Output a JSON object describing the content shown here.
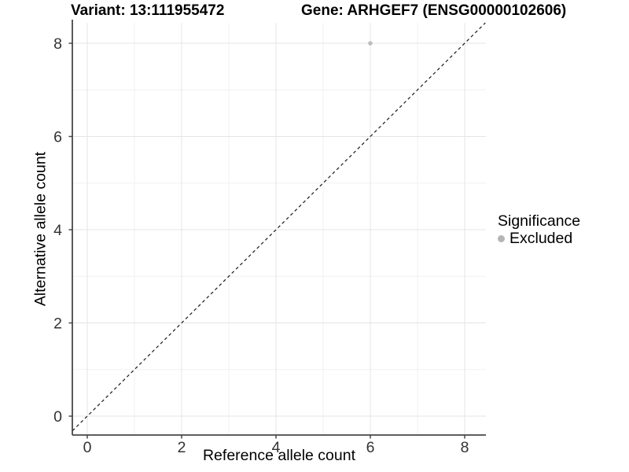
{
  "chart_data": {
    "type": "scatter",
    "title_left": "Variant: 13:111955472",
    "title_right": "Gene: ARHGEF7 (ENSG00000102606)",
    "xlabel": "Reference allele count",
    "ylabel": "Alternative allele count",
    "xlim": [
      -0.32,
      8.44
    ],
    "ylim": [
      -0.41,
      8.44
    ],
    "x_ticks": [
      0,
      2,
      4,
      6,
      8
    ],
    "y_ticks": [
      0,
      2,
      4,
      6,
      8
    ],
    "x_minor_ticks": [
      1,
      3,
      5,
      7
    ],
    "y_minor_ticks": [
      1,
      3,
      5,
      7
    ],
    "grid": true,
    "points": [
      {
        "x": 6,
        "y": 8,
        "significance": "Excluded"
      }
    ],
    "identity_line": {
      "slope": 1,
      "intercept": 0,
      "style": "dashed"
    },
    "legend": {
      "position": "right",
      "title": "Significance",
      "items": [
        {
          "label": "Excluded",
          "color": "#b9b9b9"
        }
      ]
    }
  },
  "colors": {
    "point": "#bdbdbd",
    "legend_dot": "#b5b5b5",
    "grid_major": "#e4e4e4",
    "grid_minor": "#f1f1f1",
    "axis": "#474747",
    "tick_label": "#333333",
    "dashed_line": "#1a1a1a",
    "background": "#ffffff"
  }
}
